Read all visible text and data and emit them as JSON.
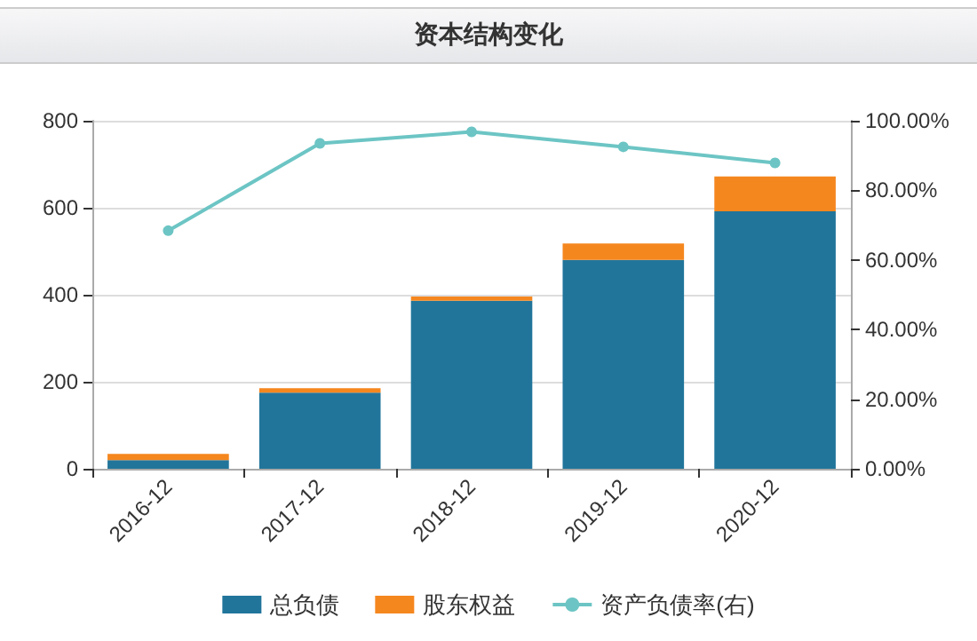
{
  "chart_data": {
    "type": "bar",
    "title": "资本结构变化",
    "categories": [
      "2016-12",
      "2017-12",
      "2018-12",
      "2019-12",
      "2020-12"
    ],
    "stacked": true,
    "series": [
      {
        "name": "总负债",
        "color": "#21759b",
        "values": [
          20,
          175,
          386,
          480,
          592
        ]
      },
      {
        "name": "股东权益",
        "color": "#f5871f",
        "values": [
          14,
          10,
          10,
          38,
          80
        ]
      },
      {
        "name": "资产负债率(右)",
        "type": "line",
        "axis": "y2",
        "color": "#6cc5c4",
        "values": [
          68.4,
          93.5,
          96.8,
          92.5,
          87.9
        ]
      }
    ],
    "ylim": [
      0,
      800
    ],
    "yticks": [
      0,
      200,
      400,
      600,
      800
    ],
    "y2lim": [
      0,
      100
    ],
    "y2ticks": [
      {
        "value": 0,
        "label": "0.00%"
      },
      {
        "value": 20,
        "label": "20.00%"
      },
      {
        "value": 40,
        "label": "40.00%"
      },
      {
        "value": 60,
        "label": "60.00%"
      },
      {
        "value": 80,
        "label": "80.00%"
      },
      {
        "value": 100,
        "label": "100.00%"
      }
    ],
    "grid": "y",
    "legend": "bottom",
    "marker": "circle"
  }
}
